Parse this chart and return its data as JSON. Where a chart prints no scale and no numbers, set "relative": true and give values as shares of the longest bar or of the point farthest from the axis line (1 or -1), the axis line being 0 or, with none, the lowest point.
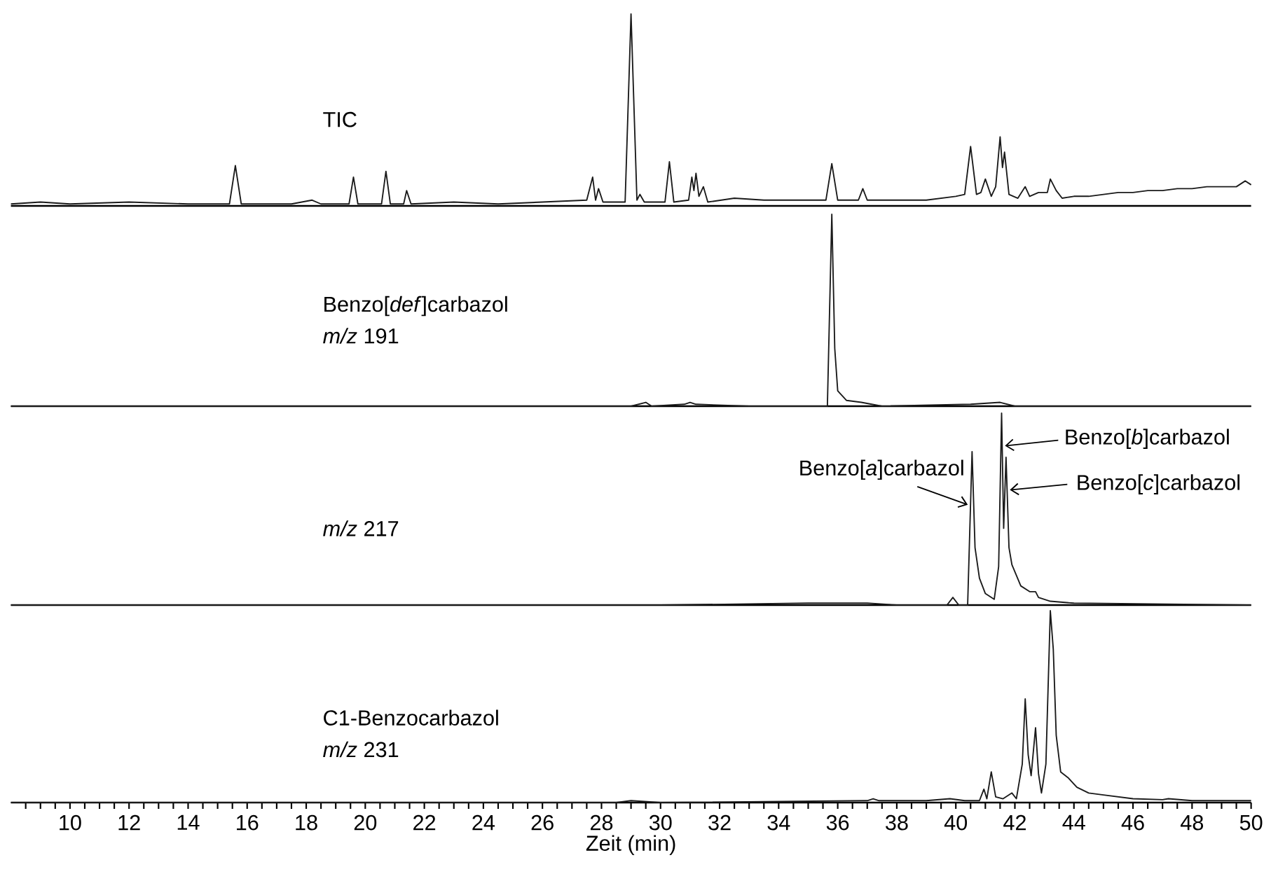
{
  "chart_data": [
    {
      "type": "line",
      "title": "TIC",
      "relative": true,
      "xlim": [
        8,
        50
      ],
      "tick_labels": false,
      "x": [
        8,
        9,
        10,
        12,
        14,
        15.4,
        15.6,
        15.8,
        17.5,
        18.2,
        18.5,
        19.45,
        19.6,
        19.75,
        20.55,
        20.7,
        20.85,
        21.3,
        21.4,
        21.55,
        23,
        24.5,
        26,
        27.5,
        27.7,
        27.8,
        27.9,
        28.05,
        28.8,
        29.0,
        29.2,
        29.3,
        29.45,
        30.15,
        30.3,
        30.45,
        30.95,
        31.06,
        31.13,
        31.2,
        31.3,
        31.45,
        31.6,
        32.5,
        33.5,
        34.5,
        35.6,
        35.8,
        36.0,
        36.7,
        36.85,
        37,
        38,
        39,
        40,
        40.3,
        40.5,
        40.7,
        40.85,
        41.0,
        41.2,
        41.35,
        41.5,
        41.58,
        41.65,
        41.8,
        42.1,
        42.35,
        42.5,
        42.8,
        43.1,
        43.2,
        43.4,
        43.6,
        44,
        44.5,
        45,
        45.5,
        46,
        46.5,
        47,
        47.5,
        48,
        48.5,
        49,
        49.5,
        49.8,
        50
      ],
      "series": [
        {
          "color": "#1a1a1a",
          "values": [
            0.01,
            0.02,
            0.01,
            0.02,
            0.01,
            0.01,
            0.21,
            0.01,
            0.01,
            0.03,
            0.01,
            0.01,
            0.15,
            0.01,
            0.01,
            0.18,
            0.01,
            0.01,
            0.08,
            0.01,
            0.02,
            0.01,
            0.02,
            0.03,
            0.15,
            0.03,
            0.09,
            0.02,
            0.02,
            1,
            0.03,
            0.06,
            0.02,
            0.02,
            0.23,
            0.02,
            0.03,
            0.15,
            0.08,
            0.17,
            0.05,
            0.1,
            0.02,
            0.04,
            0.03,
            0.03,
            0.03,
            0.22,
            0.03,
            0.03,
            0.09,
            0.03,
            0.03,
            0.03,
            0.05,
            0.06,
            0.31,
            0.06,
            0.07,
            0.14,
            0.05,
            0.1,
            0.36,
            0.2,
            0.28,
            0.06,
            0.04,
            0.1,
            0.05,
            0.07,
            0.07,
            0.14,
            0.08,
            0.04,
            0.05,
            0.05,
            0.06,
            0.07,
            0.07,
            0.08,
            0.08,
            0.09,
            0.09,
            0.1,
            0.1,
            0.1,
            0.13,
            0.11
          ]
        }
      ]
    },
    {
      "type": "line",
      "title": "Benzo[*def*]carbazol",
      "subtitle": "*m/z* 191",
      "relative": true,
      "xlim": [
        8,
        50
      ],
      "tick_labels": false,
      "x": [
        8,
        29,
        29.5,
        29.7,
        30.8,
        31,
        31.2,
        33,
        35.65,
        35.8,
        35.9,
        36.0,
        36.3,
        36.8,
        37.5,
        40.5,
        41.5,
        42,
        50
      ],
      "series": [
        {
          "color": "#1a1a1a",
          "values": [
            0,
            0,
            0.02,
            0,
            0.01,
            0.02,
            0.01,
            0,
            0,
            1,
            0.3,
            0.08,
            0.03,
            0.02,
            0,
            0.01,
            0.02,
            0,
            0
          ]
        }
      ]
    },
    {
      "type": "line",
      "title": "*m/z* 217",
      "relative": true,
      "xlim": [
        8,
        50
      ],
      "tick_labels": false,
      "x": [
        8,
        30,
        35,
        37,
        38,
        39.7,
        39.9,
        40.1,
        40.4,
        40.55,
        40.65,
        40.8,
        41.0,
        41.3,
        41.45,
        41.55,
        41.62,
        41.7,
        41.8,
        41.9,
        42.2,
        42.5,
        42.7,
        42.8,
        43.2,
        44,
        50
      ],
      "series": [
        {
          "color": "#1a1a1a",
          "values": [
            0,
            0,
            0.01,
            0.01,
            0,
            0,
            0.04,
            0,
            0,
            0.8,
            0.3,
            0.14,
            0.06,
            0.03,
            0.2,
            1,
            0.4,
            0.77,
            0.3,
            0.21,
            0.1,
            0.07,
            0.07,
            0.04,
            0.02,
            0.01,
            0
          ]
        }
      ],
      "annotations": [
        {
          "text": "Benzo[*a*]carbazol",
          "x": 40.5,
          "y": 0.53
        },
        {
          "text": "Benzo[*b*]carbazol",
          "x": 41.57,
          "y": 0.83
        },
        {
          "text": "Benzo[*c*]carbazol",
          "x": 41.735,
          "y": 0.6
        }
      ]
    },
    {
      "type": "line",
      "title": "C1-Benzocarbazol",
      "subtitle": "*m/z* 231",
      "relative": true,
      "xlim": [
        8,
        50
      ],
      "tick_labels": "x",
      "xlabel": "Zeit (min)",
      "xticks": [
        {
          "value": 8.5,
          "label": null
        },
        {
          "value": 9,
          "label": null
        },
        {
          "value": 9.5,
          "label": null
        },
        10,
        {
          "value": 10.5,
          "label": null
        },
        {
          "value": 11,
          "label": null
        },
        {
          "value": 11.5,
          "label": null
        },
        12,
        {
          "value": 12.5,
          "label": null
        },
        {
          "value": 13,
          "label": null
        },
        {
          "value": 13.5,
          "label": null
        },
        14,
        {
          "value": 14.5,
          "label": null
        },
        {
          "value": 15,
          "label": null
        },
        {
          "value": 15.5,
          "label": null
        },
        16,
        {
          "value": 16.5,
          "label": null
        },
        {
          "value": 17,
          "label": null
        },
        {
          "value": 17.5,
          "label": null
        },
        18,
        {
          "value": 18.5,
          "label": null
        },
        {
          "value": 19,
          "label": null
        },
        {
          "value": 19.5,
          "label": null
        },
        20,
        {
          "value": 20.5,
          "label": null
        },
        {
          "value": 21,
          "label": null
        },
        {
          "value": 21.5,
          "label": null
        },
        22,
        {
          "value": 22.5,
          "label": null
        },
        {
          "value": 23,
          "label": null
        },
        {
          "value": 23.5,
          "label": null
        },
        24,
        {
          "value": 24.5,
          "label": null
        },
        {
          "value": 25,
          "label": null
        },
        {
          "value": 25.5,
          "label": null
        },
        26,
        {
          "value": 26.5,
          "label": null
        },
        {
          "value": 27,
          "label": null
        },
        {
          "value": 27.5,
          "label": null
        },
        28,
        {
          "value": 28.5,
          "label": null
        },
        {
          "value": 29,
          "label": null
        },
        {
          "value": 29.5,
          "label": null
        },
        30,
        {
          "value": 30.5,
          "label": null
        },
        {
          "value": 31,
          "label": null
        },
        {
          "value": 31.5,
          "label": null
        },
        32,
        {
          "value": 32.5,
          "label": null
        },
        {
          "value": 33,
          "label": null
        },
        {
          "value": 33.5,
          "label": null
        },
        34,
        {
          "value": 34.5,
          "label": null
        },
        {
          "value": 35,
          "label": null
        },
        {
          "value": 35.5,
          "label": null
        },
        36,
        {
          "value": 36.5,
          "label": null
        },
        {
          "value": 37,
          "label": null
        },
        {
          "value": 37.5,
          "label": null
        },
        38,
        {
          "value": 38.5,
          "label": null
        },
        {
          "value": 39,
          "label": null
        },
        {
          "value": 39.5,
          "label": null
        },
        40,
        {
          "value": 40.5,
          "label": null
        },
        {
          "value": 41,
          "label": null
        },
        {
          "value": 41.5,
          "label": null
        },
        42,
        {
          "value": 42.5,
          "label": null
        },
        {
          "value": 43,
          "label": null
        },
        {
          "value": 43.5,
          "label": null
        },
        44,
        {
          "value": 44.5,
          "label": null
        },
        {
          "value": 45,
          "label": null
        },
        {
          "value": 45.5,
          "label": null
        },
        46,
        {
          "value": 46.5,
          "label": null
        },
        {
          "value": 47,
          "label": null
        },
        {
          "value": 47.5,
          "label": null
        },
        48,
        {
          "value": 48.5,
          "label": null
        },
        {
          "value": 49,
          "label": null
        },
        {
          "value": 49.5,
          "label": null
        },
        50
      ],
      "x": [
        8,
        28.5,
        29,
        30,
        37,
        37.2,
        37.4,
        39,
        39.8,
        40.3,
        40.8,
        40.95,
        41.05,
        41.2,
        41.35,
        41.6,
        41.9,
        42.05,
        42.25,
        42.35,
        42.45,
        42.55,
        42.7,
        42.8,
        42.9,
        43.05,
        43.2,
        43.3,
        43.4,
        43.55,
        43.8,
        44.1,
        44.5,
        45,
        46,
        47,
        47.2,
        48,
        50
      ],
      "series": [
        {
          "color": "#1a1a1a",
          "values": [
            0,
            0,
            0.01,
            0,
            0.01,
            0.02,
            0.01,
            0.01,
            0.02,
            0.01,
            0.01,
            0.07,
            0.02,
            0.16,
            0.03,
            0.02,
            0.05,
            0.02,
            0.2,
            0.54,
            0.25,
            0.14,
            0.39,
            0.15,
            0.05,
            0.2,
            1,
            0.8,
            0.35,
            0.16,
            0.13,
            0.08,
            0.05,
            0.04,
            0.02,
            0.015,
            0.02,
            0.01,
            0.01
          ]
        }
      ]
    }
  ]
}
